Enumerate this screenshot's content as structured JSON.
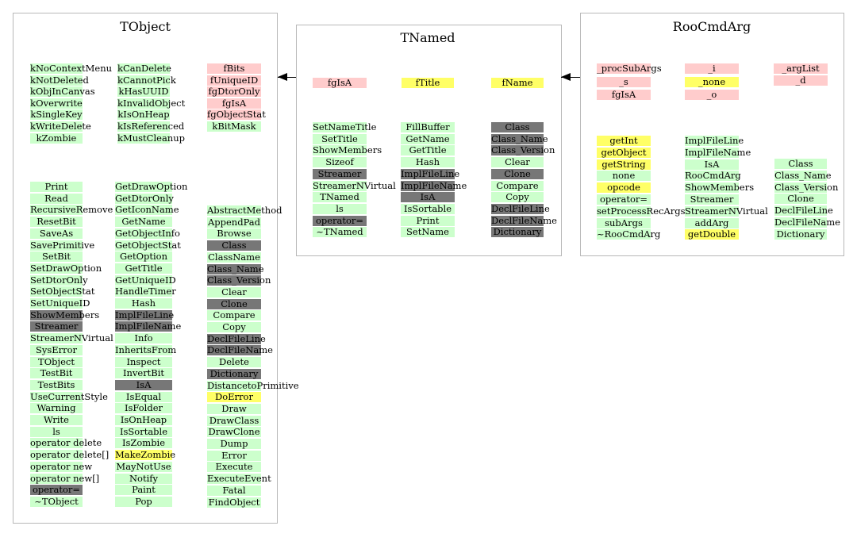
{
  "colors": {
    "method": "#ccffcc",
    "data_member": "#ffcccc",
    "highlight": "#ffff66",
    "inherited": "#777777"
  },
  "classes": [
    {
      "name": "TObject",
      "columns": [
        {
          "rows": [
            {
              "text": "kNoContextMenu",
              "c": "g"
            },
            {
              "text": "kNotDeleted",
              "c": "g"
            },
            {
              "text": "kObjInCanvas",
              "c": "g"
            },
            {
              "text": "kOverwrite",
              "c": "g"
            },
            {
              "text": "kSingleKey",
              "c": "g"
            },
            {
              "text": "kWriteDelete",
              "c": "g"
            },
            {
              "text": "kZombie",
              "c": "g"
            }
          ]
        },
        {
          "rows": [
            {
              "text": "kCanDelete",
              "c": "g"
            },
            {
              "text": "kCannotPick",
              "c": "g"
            },
            {
              "text": "kHasUUID",
              "c": "g"
            },
            {
              "text": "kInvalidObject",
              "c": "g"
            },
            {
              "text": "kIsOnHeap",
              "c": "g"
            },
            {
              "text": "kIsReferenced",
              "c": "g"
            },
            {
              "text": "kMustCleanup",
              "c": "g"
            }
          ]
        },
        {
          "rows": [
            {
              "text": "fBits",
              "c": "p"
            },
            {
              "text": "fUniqueID",
              "c": "p"
            },
            {
              "text": "fgDtorOnly",
              "c": "p"
            },
            {
              "text": "fgIsA",
              "c": "p"
            },
            {
              "text": "fgObjectStat",
              "c": "p"
            },
            {
              "text": "kBitMask",
              "c": "g"
            }
          ]
        },
        {
          "rows": [
            {
              "text": "Print",
              "c": "g"
            },
            {
              "text": "Read",
              "c": "g"
            },
            {
              "text": "RecursiveRemove",
              "c": "g"
            },
            {
              "text": "ResetBit",
              "c": "g"
            },
            {
              "text": "SaveAs",
              "c": "g"
            },
            {
              "text": "SavePrimitive",
              "c": "g"
            },
            {
              "text": "SetBit",
              "c": "g"
            },
            {
              "text": "SetDrawOption",
              "c": "g"
            },
            {
              "text": "SetDtorOnly",
              "c": "g"
            },
            {
              "text": "SetObjectStat",
              "c": "g"
            },
            {
              "text": "SetUniqueID",
              "c": "g"
            },
            {
              "text": "ShowMembers",
              "c": "d"
            },
            {
              "text": "Streamer",
              "c": "d"
            },
            {
              "text": "StreamerNVirtual",
              "c": "g"
            },
            {
              "text": "SysError",
              "c": "g"
            },
            {
              "text": "TObject",
              "c": "g"
            },
            {
              "text": "TestBit",
              "c": "g"
            },
            {
              "text": "TestBits",
              "c": "g"
            },
            {
              "text": "UseCurrentStyle",
              "c": "g"
            },
            {
              "text": "Warning",
              "c": "g"
            },
            {
              "text": "Write",
              "c": "g"
            },
            {
              "text": "ls",
              "c": "g"
            },
            {
              "text": "operator delete",
              "c": "g"
            },
            {
              "text": "operator delete[]",
              "c": "g"
            },
            {
              "text": "operator new",
              "c": "g"
            },
            {
              "text": "operator new[]",
              "c": "g"
            },
            {
              "text": "operator=",
              "c": "d"
            },
            {
              "text": "~TObject",
              "c": "g"
            }
          ]
        },
        {
          "rows": [
            {
              "text": "GetDrawOption",
              "c": "g"
            },
            {
              "text": "GetDtorOnly",
              "c": "g"
            },
            {
              "text": "GetIconName",
              "c": "g"
            },
            {
              "text": "GetName",
              "c": "g"
            },
            {
              "text": "GetObjectInfo",
              "c": "g"
            },
            {
              "text": "GetObjectStat",
              "c": "g"
            },
            {
              "text": "GetOption",
              "c": "g"
            },
            {
              "text": "GetTitle",
              "c": "g"
            },
            {
              "text": "GetUniqueID",
              "c": "g"
            },
            {
              "text": "HandleTimer",
              "c": "g"
            },
            {
              "text": "Hash",
              "c": "g"
            },
            {
              "text": "ImplFileLine",
              "c": "d"
            },
            {
              "text": "ImplFileName",
              "c": "d"
            },
            {
              "text": "Info",
              "c": "g"
            },
            {
              "text": "InheritsFrom",
              "c": "g"
            },
            {
              "text": "Inspect",
              "c": "g"
            },
            {
              "text": "InvertBit",
              "c": "g"
            },
            {
              "text": "IsA",
              "c": "d"
            },
            {
              "text": "IsEqual",
              "c": "g"
            },
            {
              "text": "IsFolder",
              "c": "g"
            },
            {
              "text": "IsOnHeap",
              "c": "g"
            },
            {
              "text": "IsSortable",
              "c": "g"
            },
            {
              "text": "IsZombie",
              "c": "g"
            },
            {
              "text": "MakeZombie",
              "c": "y"
            },
            {
              "text": "MayNotUse",
              "c": "g"
            },
            {
              "text": "Notify",
              "c": "g"
            },
            {
              "text": "Paint",
              "c": "g"
            },
            {
              "text": "Pop",
              "c": "g"
            }
          ]
        },
        {
          "rows": [
            {
              "text": "AbstractMethod",
              "c": "g"
            },
            {
              "text": "AppendPad",
              "c": "g"
            },
            {
              "text": "Browse",
              "c": "g"
            },
            {
              "text": "Class",
              "c": "d"
            },
            {
              "text": "ClassName",
              "c": "g"
            },
            {
              "text": "Class_Name",
              "c": "d"
            },
            {
              "text": "Class_Version",
              "c": "d"
            },
            {
              "text": "Clear",
              "c": "g"
            },
            {
              "text": "Clone",
              "c": "d"
            },
            {
              "text": "Compare",
              "c": "g"
            },
            {
              "text": "Copy",
              "c": "g"
            },
            {
              "text": "DeclFileLine",
              "c": "d"
            },
            {
              "text": "DeclFileName",
              "c": "d"
            },
            {
              "text": "Delete",
              "c": "g"
            },
            {
              "text": "Dictionary",
              "c": "d"
            },
            {
              "text": "DistancetoPrimitive",
              "c": "g"
            },
            {
              "text": "DoError",
              "c": "y"
            },
            {
              "text": "Draw",
              "c": "g"
            },
            {
              "text": "DrawClass",
              "c": "g"
            },
            {
              "text": "DrawClone",
              "c": "g"
            },
            {
              "text": "Dump",
              "c": "g"
            },
            {
              "text": "Error",
              "c": "g"
            },
            {
              "text": "Execute",
              "c": "g"
            },
            {
              "text": "ExecuteEvent",
              "c": "g"
            },
            {
              "text": "Fatal",
              "c": "g"
            },
            {
              "text": "FindObject",
              "c": "g"
            }
          ]
        }
      ]
    },
    {
      "name": "TNamed",
      "columns": [
        {
          "rows": [
            {
              "text": "fgIsA",
              "c": "p"
            }
          ]
        },
        {
          "rows": [
            {
              "text": "fTitle",
              "c": "y"
            }
          ]
        },
        {
          "rows": [
            {
              "text": "fName",
              "c": "y"
            }
          ]
        },
        {
          "rows": [
            {
              "text": "SetNameTitle",
              "c": "g"
            },
            {
              "text": "SetTitle",
              "c": "g"
            },
            {
              "text": "ShowMembers",
              "c": "g"
            },
            {
              "text": "Sizeof",
              "c": "g"
            },
            {
              "text": "Streamer",
              "c": "d"
            },
            {
              "text": "StreamerNVirtual",
              "c": "g"
            },
            {
              "text": "TNamed",
              "c": "g"
            },
            {
              "text": "ls",
              "c": "g"
            },
            {
              "text": "operator=",
              "c": "d"
            },
            {
              "text": "~TNamed",
              "c": "g"
            }
          ]
        },
        {
          "rows": [
            {
              "text": "FillBuffer",
              "c": "g"
            },
            {
              "text": "GetName",
              "c": "g"
            },
            {
              "text": "GetTitle",
              "c": "g"
            },
            {
              "text": "Hash",
              "c": "g"
            },
            {
              "text": "ImplFileLine",
              "c": "d"
            },
            {
              "text": "ImplFileName",
              "c": "d"
            },
            {
              "text": "IsA",
              "c": "d"
            },
            {
              "text": "IsSortable",
              "c": "g"
            },
            {
              "text": "Print",
              "c": "g"
            },
            {
              "text": "SetName",
              "c": "g"
            }
          ]
        },
        {
          "rows": [
            {
              "text": "Class",
              "c": "d"
            },
            {
              "text": "Class_Name",
              "c": "d"
            },
            {
              "text": "Class_Version",
              "c": "d"
            },
            {
              "text": "Clear",
              "c": "g"
            },
            {
              "text": "Clone",
              "c": "d"
            },
            {
              "text": "Compare",
              "c": "g"
            },
            {
              "text": "Copy",
              "c": "g"
            },
            {
              "text": "DeclFileLine",
              "c": "d"
            },
            {
              "text": "DeclFileName",
              "c": "d"
            },
            {
              "text": "Dictionary",
              "c": "d"
            }
          ]
        }
      ]
    },
    {
      "name": "RooCmdArg",
      "columns": [
        {
          "rows": [
            {
              "text": "_procSubArgs",
              "c": "p"
            },
            {
              "text": "_s",
              "c": "p"
            },
            {
              "text": "fgIsA",
              "c": "p"
            }
          ]
        },
        {
          "rows": [
            {
              "text": "_i",
              "c": "p"
            },
            {
              "text": "_none",
              "c": "y"
            },
            {
              "text": "_o",
              "c": "p"
            }
          ]
        },
        {
          "rows": [
            {
              "text": "_argList",
              "c": "p"
            },
            {
              "text": "_d",
              "c": "p"
            }
          ]
        },
        {
          "rows": [
            {
              "text": "getInt",
              "c": "y"
            },
            {
              "text": "getObject",
              "c": "y"
            },
            {
              "text": "getString",
              "c": "y"
            },
            {
              "text": "none",
              "c": "g"
            },
            {
              "text": "opcode",
              "c": "y"
            },
            {
              "text": "operator=",
              "c": "g"
            },
            {
              "text": "setProcessRecArgs",
              "c": "g"
            },
            {
              "text": "subArgs",
              "c": "g"
            },
            {
              "text": "~RooCmdArg",
              "c": "g"
            }
          ]
        },
        {
          "rows": [
            {
              "text": "ImplFileLine",
              "c": "g"
            },
            {
              "text": "ImplFileName",
              "c": "g"
            },
            {
              "text": "IsA",
              "c": "g"
            },
            {
              "text": "RooCmdArg",
              "c": "g"
            },
            {
              "text": "ShowMembers",
              "c": "g"
            },
            {
              "text": "Streamer",
              "c": "g"
            },
            {
              "text": "StreamerNVirtual",
              "c": "g"
            },
            {
              "text": "addArg",
              "c": "g"
            },
            {
              "text": "getDouble",
              "c": "y"
            }
          ]
        },
        {
          "rows": [
            {
              "text": "Class",
              "c": "g"
            },
            {
              "text": "Class_Name",
              "c": "g"
            },
            {
              "text": "Class_Version",
              "c": "g"
            },
            {
              "text": "Clone",
              "c": "g"
            },
            {
              "text": "DeclFileLine",
              "c": "g"
            },
            {
              "text": "DeclFileName",
              "c": "g"
            },
            {
              "text": "Dictionary",
              "c": "g"
            }
          ]
        }
      ]
    }
  ]
}
